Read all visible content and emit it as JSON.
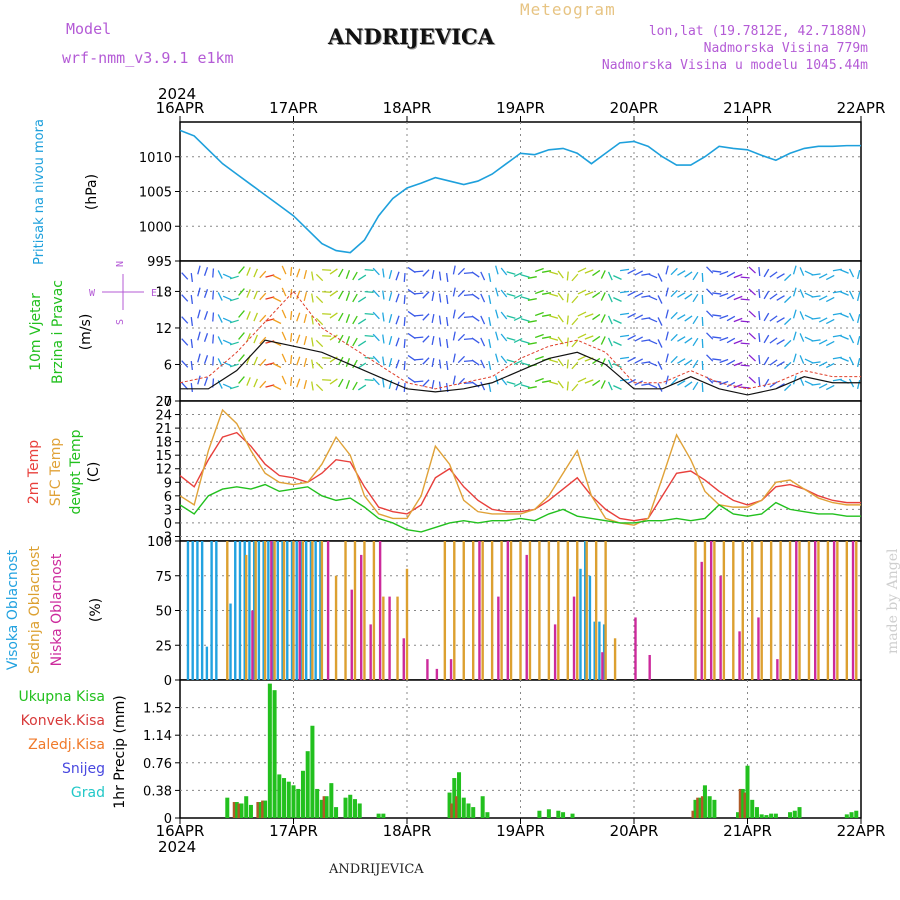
{
  "header": {
    "model_label": "Model",
    "model_name": "wrf-nmm_v3.9.1 e1km",
    "station": "ANDRIJEVICA",
    "meteogram": "Meteogram",
    "lonlat": "lon,lat (19.7812E, 42.7188N)",
    "altitude": "Nadmorska Visina 779m",
    "model_altitude": "Nadmorska Visina u modelu 1045.44m",
    "footer_station": "ANDRIJEVICA",
    "credit": "made by Angel"
  },
  "colors": {
    "pressure": "#1ea0dc",
    "temp2m": "#e8403c",
    "sfc_temp": "#e0a238",
    "dewpoint": "#22c01e",
    "high_cloud": "#22a2e0",
    "mid_cloud": "#dca030",
    "low_cloud": "#cc2a9c",
    "total_precip": "#22c01e",
    "conv_precip": "#d83a3a",
    "frozen_precip": "#f07a2a",
    "snow": "#4848e0",
    "hail": "#22c8c8",
    "purple_label": "#b45bd6"
  },
  "chart_data": [
    {
      "type": "line",
      "panel": "pressure",
      "axis_label": "(hPa)",
      "side_labels": [
        "Pritisak na nivou mora"
      ],
      "x_ticks": [
        "16APR",
        "17APR",
        "18APR",
        "19APR",
        "20APR",
        "21APR",
        "22APR"
      ],
      "x_top_year": "2024",
      "y_ticks": [
        "1010",
        "1005",
        "1000",
        "995"
      ],
      "ylim": [
        995,
        1015
      ],
      "xlim": [
        0,
        144
      ],
      "series": [
        {
          "x": [
            0,
            3,
            6,
            9,
            12,
            15,
            18,
            21,
            24,
            27,
            30,
            33,
            36,
            39,
            42,
            45,
            48,
            51,
            54,
            57,
            60,
            63,
            66,
            69,
            72,
            75,
            78,
            81,
            84,
            87,
            90,
            93,
            96,
            99,
            102,
            105,
            108,
            111,
            114,
            117,
            120,
            123,
            126,
            129,
            132,
            135,
            138,
            141,
            144
          ],
          "values": [
            1013.8,
            1013,
            1011,
            1009,
            1007.5,
            1006,
            1004.5,
            1003,
            1001.5,
            999.5,
            997.5,
            996.5,
            996.2,
            998,
            1001.5,
            1004,
            1005.5,
            1006.2,
            1007,
            1006.5,
            1006,
            1006.5,
            1007.5,
            1009,
            1010.5,
            1010.3,
            1011,
            1011.2,
            1010.5,
            1009,
            1010.5,
            1012,
            1012.2,
            1011.5,
            1010,
            1008.8,
            1008.8,
            1010,
            1011.5,
            1011.2,
            1011,
            1010.2,
            1009.5,
            1010.5,
            1011.2,
            1011.5,
            1011.5,
            1011.6,
            1011.6
          ]
        }
      ]
    },
    {
      "type": "line",
      "panel": "wind",
      "axis_label": "(m/s)",
      "side_labels": [
        "10m Vjetar",
        "Brzina i Pravac"
      ],
      "compass_labels": [
        "N",
        "W",
        "E",
        "S"
      ],
      "y_ticks": [
        "18",
        "12",
        "6",
        "0"
      ],
      "ylim": [
        0,
        23
      ],
      "xlim": [
        0,
        144
      ],
      "series": [
        {
          "name": "speed",
          "x": [
            0,
            6,
            12,
            18,
            24,
            30,
            36,
            42,
            48,
            54,
            60,
            66,
            72,
            78,
            84,
            90,
            96,
            102,
            108,
            114,
            120,
            126,
            132,
            138,
            144
          ],
          "values": [
            2,
            2,
            5,
            10,
            9,
            8,
            6,
            4,
            2,
            1.5,
            2,
            3,
            5,
            7,
            8,
            6,
            2,
            2,
            4,
            2,
            1,
            2,
            4,
            3,
            3
          ]
        },
        {
          "name": "gust",
          "x": [
            0,
            6,
            12,
            18,
            24,
            30,
            36,
            42,
            48,
            54,
            60,
            66,
            72,
            78,
            84,
            90,
            96,
            102,
            108,
            114,
            120,
            126,
            132,
            138,
            144
          ],
          "values": [
            3,
            4,
            8,
            13,
            18,
            12,
            9,
            6,
            3,
            2,
            3,
            4,
            7,
            9,
            10,
            8,
            3,
            3,
            5,
            3,
            2,
            3,
            5,
            4,
            4
          ]
        }
      ]
    },
    {
      "type": "line",
      "panel": "temperature",
      "axis_label": "(C)",
      "side_labels": [
        "2m Temp",
        "SFC Temp",
        "dewpt Temp"
      ],
      "y_ticks": [
        "27",
        "24",
        "21",
        "18",
        "15",
        "12",
        "9",
        "6",
        "3",
        "0",
        "-3"
      ],
      "ylim": [
        -4,
        27
      ],
      "xlim": [
        0,
        144
      ],
      "series": [
        {
          "name": "2m Temp",
          "x": [
            0,
            3,
            6,
            9,
            12,
            15,
            18,
            21,
            24,
            27,
            30,
            33,
            36,
            39,
            42,
            45,
            48,
            51,
            54,
            57,
            60,
            63,
            66,
            69,
            72,
            75,
            78,
            81,
            84,
            87,
            90,
            93,
            96,
            99,
            102,
            105,
            108,
            111,
            114,
            117,
            120,
            123,
            126,
            129,
            132,
            135,
            138,
            141,
            144
          ],
          "values": [
            10.5,
            8,
            14,
            19,
            20,
            17,
            13,
            10.5,
            10,
            9,
            11,
            14,
            13.5,
            8,
            3.5,
            2.5,
            2,
            4,
            10,
            12,
            8,
            5,
            3,
            2.5,
            2.5,
            3,
            5,
            7.5,
            10,
            6,
            3,
            1,
            0.5,
            1,
            6,
            11,
            11.5,
            9.5,
            7,
            5,
            4,
            5,
            8,
            8.5,
            7.5,
            6,
            5,
            4.5,
            4.5
          ]
        },
        {
          "name": "SFC Temp",
          "x": [
            0,
            3,
            6,
            9,
            12,
            15,
            18,
            21,
            24,
            27,
            30,
            33,
            36,
            39,
            42,
            45,
            48,
            51,
            54,
            57,
            60,
            63,
            66,
            69,
            72,
            75,
            78,
            81,
            84,
            87,
            90,
            93,
            96,
            99,
            102,
            105,
            108,
            111,
            114,
            117,
            120,
            123,
            126,
            129,
            132,
            135,
            138,
            141,
            144
          ],
          "values": [
            6,
            4,
            16,
            25,
            22,
            16,
            11,
            9,
            8.5,
            9,
            13,
            19,
            15,
            6,
            2,
            1,
            1,
            6,
            17,
            13,
            5,
            2.5,
            2,
            2,
            2,
            3,
            6,
            11,
            16,
            6,
            1,
            0,
            -0.5,
            1,
            10,
            19.5,
            14,
            7,
            4,
            3.5,
            3.5,
            5,
            9,
            9.5,
            7.5,
            5.5,
            4.5,
            4,
            4
          ]
        },
        {
          "name": "dewpt Temp",
          "x": [
            0,
            3,
            6,
            9,
            12,
            15,
            18,
            21,
            24,
            27,
            30,
            33,
            36,
            39,
            42,
            45,
            48,
            51,
            54,
            57,
            60,
            63,
            66,
            69,
            72,
            75,
            78,
            81,
            84,
            87,
            90,
            93,
            96,
            99,
            102,
            105,
            108,
            111,
            114,
            117,
            120,
            123,
            126,
            129,
            132,
            135,
            138,
            141,
            144
          ],
          "values": [
            4,
            2,
            6,
            7.5,
            8,
            7.5,
            8.5,
            7,
            7.5,
            8,
            6,
            5,
            5.5,
            3.5,
            1,
            0,
            -1.5,
            -2,
            -1,
            0,
            0.5,
            0,
            0.5,
            0.5,
            1,
            0.5,
            2,
            3,
            1.5,
            1,
            0.5,
            0,
            0,
            0.5,
            0.5,
            1,
            0.5,
            1,
            4,
            2,
            1.5,
            2,
            4.5,
            3,
            2.5,
            2,
            2,
            1.5,
            1.5
          ]
        }
      ]
    },
    {
      "type": "bar",
      "panel": "cloud",
      "axis_label": "(%)",
      "side_labels": [
        "Visoka Oblacnost",
        "Srednja Oblacnost",
        "Niska Oblacnost"
      ],
      "y_ticks": [
        "100",
        "75",
        "50",
        "25",
        "0"
      ],
      "ylim": [
        0,
        100
      ],
      "xlim": [
        0,
        144
      ],
      "series": [
        {
          "name": "Visoka Oblacnost",
          "x": [
            2,
            3,
            4,
            5,
            6,
            7,
            8,
            11,
            12,
            13,
            14,
            15,
            16,
            17,
            18,
            19,
            20,
            21,
            22,
            23,
            24,
            25,
            26,
            27,
            28,
            29,
            30,
            85,
            86,
            87,
            88,
            89,
            90
          ],
          "values": [
            100,
            100,
            100,
            100,
            24,
            100,
            100,
            55,
            100,
            100,
            100,
            100,
            100,
            100,
            100,
            100,
            100,
            100,
            100,
            100,
            100,
            100,
            100,
            100,
            100,
            100,
            100,
            80,
            100,
            75,
            42,
            42,
            40
          ]
        },
        {
          "name": "Srednja Oblacnost",
          "x": [
            10,
            14,
            16,
            18,
            20,
            22,
            24,
            26,
            28,
            30,
            33,
            35,
            37,
            39,
            41,
            43,
            46,
            48,
            56,
            58,
            60,
            62,
            64,
            66,
            68,
            70,
            72,
            74,
            76,
            78,
            80,
            82,
            84,
            86,
            88,
            90,
            92,
            109,
            111,
            113,
            115,
            117,
            119,
            121,
            123,
            125,
            127,
            129,
            131,
            133,
            135,
            137,
            139,
            141,
            143
          ],
          "values": [
            100,
            90,
            100,
            100,
            100,
            100,
            100,
            100,
            100,
            100,
            75,
            100,
            100,
            100,
            100,
            60,
            60,
            80,
            100,
            100,
            100,
            100,
            100,
            100,
            100,
            100,
            100,
            100,
            100,
            100,
            100,
            100,
            100,
            100,
            100,
            100,
            30,
            100,
            100,
            100,
            100,
            100,
            100,
            100,
            100,
            100,
            100,
            100,
            100,
            100,
            100,
            100,
            100,
            100,
            100
          ]
        },
        {
          "name": "Niska Oblacnost",
          "x": [
            15,
            19,
            25,
            31,
            36,
            38,
            40,
            42,
            44,
            47,
            52,
            54,
            57,
            63,
            67,
            69,
            73,
            79,
            83,
            89,
            96,
            99,
            110,
            112,
            114,
            118,
            122,
            126,
            130,
            134,
            138,
            142
          ],
          "values": [
            50,
            100,
            100,
            100,
            65,
            90,
            40,
            100,
            60,
            30,
            15,
            8,
            15,
            100,
            60,
            100,
            90,
            40,
            60,
            20,
            45,
            18,
            85,
            100,
            75,
            35,
            45,
            15,
            100,
            100,
            100,
            100
          ]
        }
      ]
    },
    {
      "type": "bar",
      "panel": "precip",
      "axis_label": "1hr Precip (mm)",
      "side_labels": [
        "Ukupna Kisa",
        "Konvek.Kisa",
        "Zaledj.Kisa",
        "Snijeg",
        "Grad"
      ],
      "y_ticks": [
        "1.52",
        "1.14",
        "0.76",
        "0.38",
        "0"
      ],
      "ylim": [
        0,
        1.9
      ],
      "xlim": [
        0,
        144
      ],
      "x_ticks": [
        "16APR",
        "17APR",
        "18APR",
        "19APR",
        "20APR",
        "21APR",
        "22APR"
      ],
      "x_bottom_year": "2024",
      "series": [
        {
          "name": "Ukupna Kisa",
          "x": [
            10,
            12,
            13,
            14,
            15,
            17,
            18,
            19,
            20,
            21,
            22,
            23,
            24,
            25,
            26,
            27,
            28,
            29,
            30,
            31,
            32,
            33,
            35,
            36,
            37,
            38,
            42,
            43,
            57,
            58,
            59,
            60,
            61,
            62,
            64,
            65,
            76,
            78,
            80,
            81,
            83,
            109,
            110,
            111,
            112,
            113,
            118,
            119,
            120,
            121,
            122,
            123,
            124,
            125,
            126,
            129,
            130,
            131,
            141,
            142,
            143
          ],
          "values": [
            0.28,
            0.22,
            0.2,
            0.3,
            0.18,
            0.22,
            0.24,
            1.85,
            1.76,
            0.6,
            0.55,
            0.5,
            0.45,
            0.4,
            0.65,
            0.92,
            1.27,
            0.4,
            0.25,
            0.3,
            0.48,
            0.15,
            0.28,
            0.32,
            0.26,
            0.2,
            0.06,
            0.06,
            0.35,
            0.55,
            0.63,
            0.28,
            0.2,
            0.15,
            0.3,
            0.08,
            0.1,
            0.12,
            0.1,
            0.08,
            0.06,
            0.25,
            0.28,
            0.45,
            0.3,
            0.25,
            0.08,
            0.4,
            0.72,
            0.25,
            0.15,
            0.05,
            0.04,
            0.06,
            0.06,
            0.08,
            0.1,
            0.15,
            0.05,
            0.08,
            0.1
          ]
        },
        {
          "name": "Konvek.Kisa",
          "x": [
            12,
            13,
            17,
            18,
            31,
            58,
            59,
            109,
            110,
            111,
            119,
            120
          ],
          "values": [
            0.22,
            0.2,
            0.22,
            0.24,
            0.3,
            0.2,
            0.3,
            0.1,
            0.28,
            0.3,
            0.4,
            0.35
          ]
        }
      ]
    }
  ]
}
